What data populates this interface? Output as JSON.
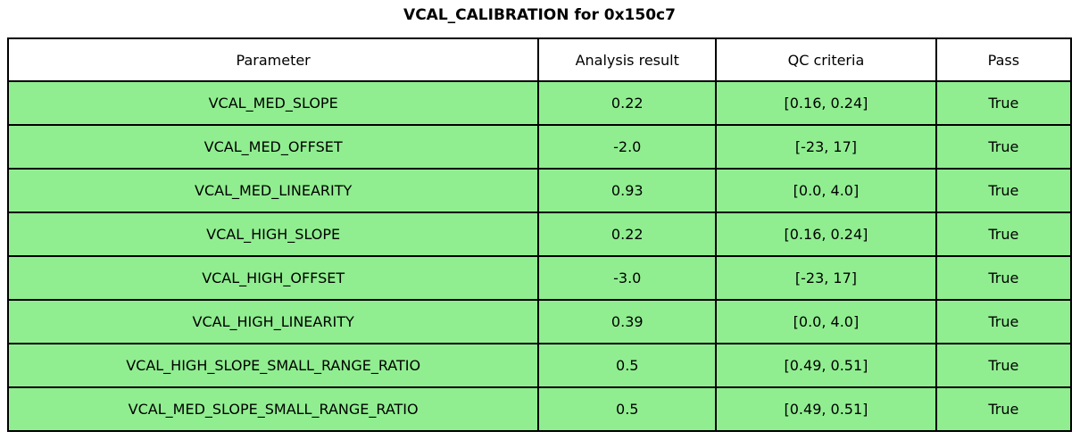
{
  "title": "VCAL_CALIBRATION for 0x150c7",
  "colors": {
    "row_background": "#90ee90",
    "header_background": "#ffffff",
    "border": "#000000",
    "text": "#000000"
  },
  "table": {
    "headers": [
      "Parameter",
      "Analysis result",
      "QC criteria",
      "Pass"
    ],
    "rows": [
      {
        "param": "VCAL_MED_SLOPE",
        "result": "0.22",
        "criteria": "[0.16, 0.24]",
        "pass": "True"
      },
      {
        "param": "VCAL_MED_OFFSET",
        "result": "-2.0",
        "criteria": "[-23, 17]",
        "pass": "True"
      },
      {
        "param": "VCAL_MED_LINEARITY",
        "result": "0.93",
        "criteria": "[0.0, 4.0]",
        "pass": "True"
      },
      {
        "param": "VCAL_HIGH_SLOPE",
        "result": "0.22",
        "criteria": "[0.16, 0.24]",
        "pass": "True"
      },
      {
        "param": "VCAL_HIGH_OFFSET",
        "result": "-3.0",
        "criteria": "[-23, 17]",
        "pass": "True"
      },
      {
        "param": "VCAL_HIGH_LINEARITY",
        "result": "0.39",
        "criteria": "[0.0, 4.0]",
        "pass": "True"
      },
      {
        "param": "VCAL_HIGH_SLOPE_SMALL_RANGE_RATIO",
        "result": "0.5",
        "criteria": "[0.49, 0.51]",
        "pass": "True"
      },
      {
        "param": "VCAL_MED_SLOPE_SMALL_RANGE_RATIO",
        "result": "0.5",
        "criteria": "[0.49, 0.51]",
        "pass": "True"
      }
    ]
  },
  "chart_data": {
    "type": "table",
    "title": "VCAL_CALIBRATION for 0x150c7",
    "columns": [
      "Parameter",
      "Analysis result",
      "QC criteria",
      "Pass"
    ],
    "rows": [
      [
        "VCAL_MED_SLOPE",
        0.22,
        "[0.16, 0.24]",
        true
      ],
      [
        "VCAL_MED_OFFSET",
        -2.0,
        "[-23, 17]",
        true
      ],
      [
        "VCAL_MED_LINEARITY",
        0.93,
        "[0.0, 4.0]",
        true
      ],
      [
        "VCAL_HIGH_SLOPE",
        0.22,
        "[0.16, 0.24]",
        true
      ],
      [
        "VCAL_HIGH_OFFSET",
        -3.0,
        "[-23, 17]",
        true
      ],
      [
        "VCAL_HIGH_LINEARITY",
        0.39,
        "[0.0, 4.0]",
        true
      ],
      [
        "VCAL_HIGH_SLOPE_SMALL_RANGE_RATIO",
        0.5,
        "[0.49, 0.51]",
        true
      ],
      [
        "VCAL_MED_SLOPE_SMALL_RANGE_RATIO",
        0.5,
        "[0.49, 0.51]",
        true
      ]
    ],
    "layout_hints": {
      "header_background": "#ffffff",
      "cell_background": "#90ee90",
      "all_cells_centered": true,
      "grid": "on"
    }
  }
}
